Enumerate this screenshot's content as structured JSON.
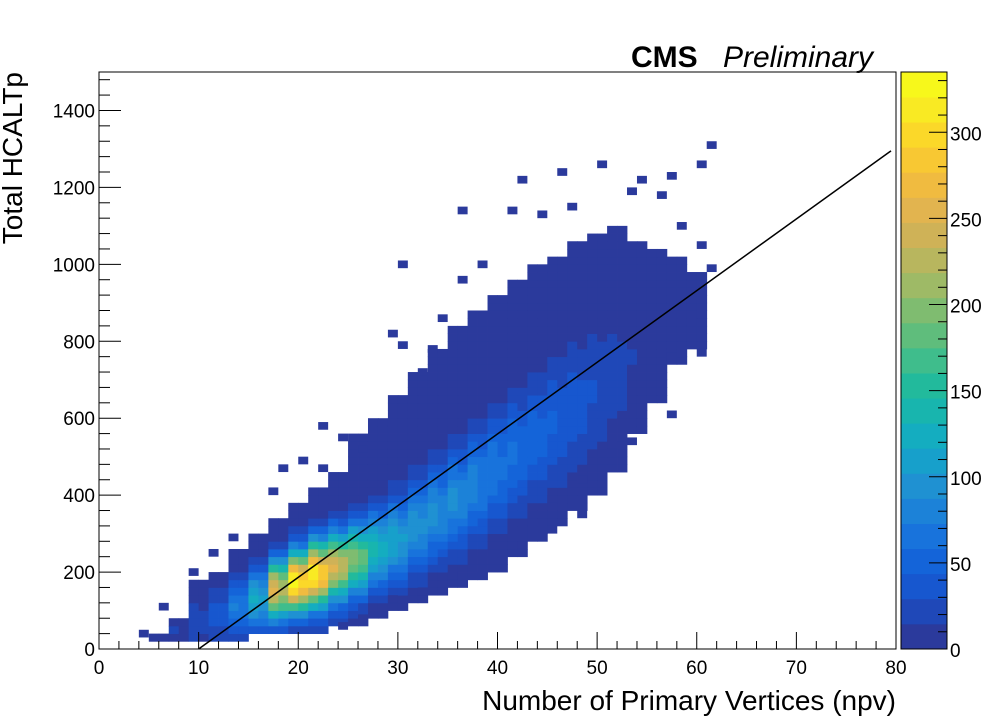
{
  "chart_data": {
    "type": "heatmap",
    "title": "",
    "labels": {
      "cms": "CMS",
      "preliminary": "Preliminary"
    },
    "xlabel": "Number of Primary Vertices (npv)",
    "ylabel": "Total HCALTp",
    "xlim": [
      0,
      80
    ],
    "ylim": [
      0,
      1500
    ],
    "zlim": [
      0,
      335
    ],
    "x_ticks": [
      0,
      10,
      20,
      30,
      40,
      50,
      60,
      70,
      80
    ],
    "y_ticks": [
      0,
      200,
      400,
      600,
      800,
      1000,
      1200,
      1400
    ],
    "z_ticks": [
      0,
      50,
      100,
      150,
      200,
      250,
      300
    ],
    "palette": [
      "#2b3a9c",
      "#1f48b8",
      "#1757cf",
      "#1464d9",
      "#1873dc",
      "#1c82d8",
      "#1f91d2",
      "#17a0cb",
      "#14adc0",
      "#18b5ae",
      "#22ba9c",
      "#3fbd8c",
      "#5fbd7c",
      "#7fbc70",
      "#9eba66",
      "#b8b65e",
      "#cfb257",
      "#e2b44f",
      "#f0bb40",
      "#f8c833",
      "#fbd829",
      "#f9ea23",
      "#f7f81b"
    ],
    "fit_line": {
      "x": [
        10,
        79.5
      ],
      "y": [
        0,
        1295
      ]
    },
    "bins": [
      {
        "x": 5,
        "y_lo": 20,
        "y_hi": 40,
        "peak": 12,
        "mu": 30,
        "sigma": 15
      },
      {
        "x": 7,
        "y_lo": 20,
        "y_hi": 80,
        "peak": 15,
        "mu": 50,
        "sigma": 25
      },
      {
        "x": 9,
        "y_lo": 20,
        "y_hi": 180,
        "peak": 25,
        "mu": 70,
        "sigma": 40
      },
      {
        "x": 11,
        "y_lo": 20,
        "y_hi": 190,
        "peak": 40,
        "mu": 90,
        "sigma": 45
      },
      {
        "x": 13,
        "y_lo": 20,
        "y_hi": 260,
        "peak": 75,
        "mu": 110,
        "sigma": 50
      },
      {
        "x": 15,
        "y_lo": 40,
        "y_hi": 300,
        "peak": 120,
        "mu": 130,
        "sigma": 55
      },
      {
        "x": 17,
        "y_lo": 40,
        "y_hi": 340,
        "peak": 250,
        "mu": 155,
        "sigma": 55
      },
      {
        "x": 19,
        "y_lo": 40,
        "y_hi": 380,
        "peak": 330,
        "mu": 175,
        "sigma": 55
      },
      {
        "x": 21,
        "y_lo": 40,
        "y_hi": 420,
        "peak": 320,
        "mu": 195,
        "sigma": 60
      },
      {
        "x": 23,
        "y_lo": 60,
        "y_hi": 460,
        "peak": 250,
        "mu": 215,
        "sigma": 62
      },
      {
        "x": 25,
        "y_lo": 60,
        "y_hi": 560,
        "peak": 200,
        "mu": 235,
        "sigma": 65
      },
      {
        "x": 27,
        "y_lo": 80,
        "y_hi": 600,
        "peak": 140,
        "mu": 260,
        "sigma": 70
      },
      {
        "x": 29,
        "y_lo": 100,
        "y_hi": 660,
        "peak": 115,
        "mu": 285,
        "sigma": 75
      },
      {
        "x": 31,
        "y_lo": 120,
        "y_hi": 720,
        "peak": 100,
        "mu": 320,
        "sigma": 80
      },
      {
        "x": 33,
        "y_lo": 140,
        "y_hi": 780,
        "peak": 95,
        "mu": 355,
        "sigma": 85
      },
      {
        "x": 35,
        "y_lo": 160,
        "y_hi": 840,
        "peak": 90,
        "mu": 390,
        "sigma": 90
      },
      {
        "x": 37,
        "y_lo": 180,
        "y_hi": 880,
        "peak": 80,
        "mu": 430,
        "sigma": 95
      },
      {
        "x": 39,
        "y_lo": 200,
        "y_hi": 920,
        "peak": 70,
        "mu": 470,
        "sigma": 100
      },
      {
        "x": 41,
        "y_lo": 240,
        "y_hi": 960,
        "peak": 60,
        "mu": 510,
        "sigma": 105
      },
      {
        "x": 43,
        "y_lo": 280,
        "y_hi": 1000,
        "peak": 52,
        "mu": 550,
        "sigma": 110
      },
      {
        "x": 45,
        "y_lo": 320,
        "y_hi": 1020,
        "peak": 45,
        "mu": 590,
        "sigma": 115
      },
      {
        "x": 47,
        "y_lo": 360,
        "y_hi": 1060,
        "peak": 38,
        "mu": 630,
        "sigma": 120
      },
      {
        "x": 49,
        "y_lo": 400,
        "y_hi": 1080,
        "peak": 30,
        "mu": 670,
        "sigma": 120
      },
      {
        "x": 51,
        "y_lo": 460,
        "y_hi": 1100,
        "peak": 22,
        "mu": 710,
        "sigma": 120
      },
      {
        "x": 53,
        "y_lo": 560,
        "y_hi": 1060,
        "peak": 15,
        "mu": 760,
        "sigma": 120
      },
      {
        "x": 55,
        "y_lo": 640,
        "y_hi": 1040,
        "peak": 10,
        "mu": 800,
        "sigma": 110
      },
      {
        "x": 57,
        "y_lo": 740,
        "y_hi": 1020,
        "peak": 6,
        "mu": 850,
        "sigma": 100
      },
      {
        "x": 59,
        "y_lo": 780,
        "y_hi": 980,
        "peak": 4,
        "mu": 880,
        "sigma": 90
      }
    ],
    "sparse_bins": [
      {
        "x": 20.5,
        "y": 490
      },
      {
        "x": 18.5,
        "y": 470
      },
      {
        "x": 22.5,
        "y": 470
      },
      {
        "x": 17.5,
        "y": 410
      },
      {
        "x": 24.5,
        "y": 550
      },
      {
        "x": 22.5,
        "y": 580
      },
      {
        "x": 26.5,
        "y": 520
      },
      {
        "x": 29.5,
        "y": 820
      },
      {
        "x": 32.5,
        "y": 720
      },
      {
        "x": 30.5,
        "y": 790
      },
      {
        "x": 34.5,
        "y": 860
      },
      {
        "x": 33.5,
        "y": 780
      },
      {
        "x": 36.5,
        "y": 960
      },
      {
        "x": 38.5,
        "y": 1000
      },
      {
        "x": 36.5,
        "y": 1140
      },
      {
        "x": 41.5,
        "y": 1140
      },
      {
        "x": 42.5,
        "y": 1220
      },
      {
        "x": 44.5,
        "y": 1130
      },
      {
        "x": 46.5,
        "y": 1240
      },
      {
        "x": 47.5,
        "y": 1150
      },
      {
        "x": 50.5,
        "y": 1260
      },
      {
        "x": 53.5,
        "y": 1190
      },
      {
        "x": 54.5,
        "y": 1220
      },
      {
        "x": 56.5,
        "y": 1180
      },
      {
        "x": 57.5,
        "y": 1230
      },
      {
        "x": 60.5,
        "y": 1260
      },
      {
        "x": 61.5,
        "y": 1310
      },
      {
        "x": 60.5,
        "y": 1050
      },
      {
        "x": 58.5,
        "y": 1100
      },
      {
        "x": 61.5,
        "y": 990
      },
      {
        "x": 60.5,
        "y": 870
      },
      {
        "x": 57.5,
        "y": 760
      },
      {
        "x": 60.5,
        "y": 770
      },
      {
        "x": 57.5,
        "y": 610
      },
      {
        "x": 53.5,
        "y": 540
      },
      {
        "x": 51.5,
        "y": 530
      },
      {
        "x": 48.5,
        "y": 440
      },
      {
        "x": 45.5,
        "y": 390
      },
      {
        "x": 48.5,
        "y": 350
      },
      {
        "x": 45.5,
        "y": 310
      },
      {
        "x": 42.5,
        "y": 270
      },
      {
        "x": 38.5,
        "y": 190
      },
      {
        "x": 35.5,
        "y": 190
      },
      {
        "x": 32.5,
        "y": 150
      },
      {
        "x": 29.5,
        "y": 130
      },
      {
        "x": 30.5,
        "y": 1000
      },
      {
        "x": 11.5,
        "y": 250
      },
      {
        "x": 9.5,
        "y": 200
      },
      {
        "x": 13.5,
        "y": 290
      },
      {
        "x": 24.5,
        "y": 60
      },
      {
        "x": 26.5,
        "y": 80
      },
      {
        "x": 4.5,
        "y": 40
      },
      {
        "x": 6.5,
        "y": 110
      }
    ]
  }
}
